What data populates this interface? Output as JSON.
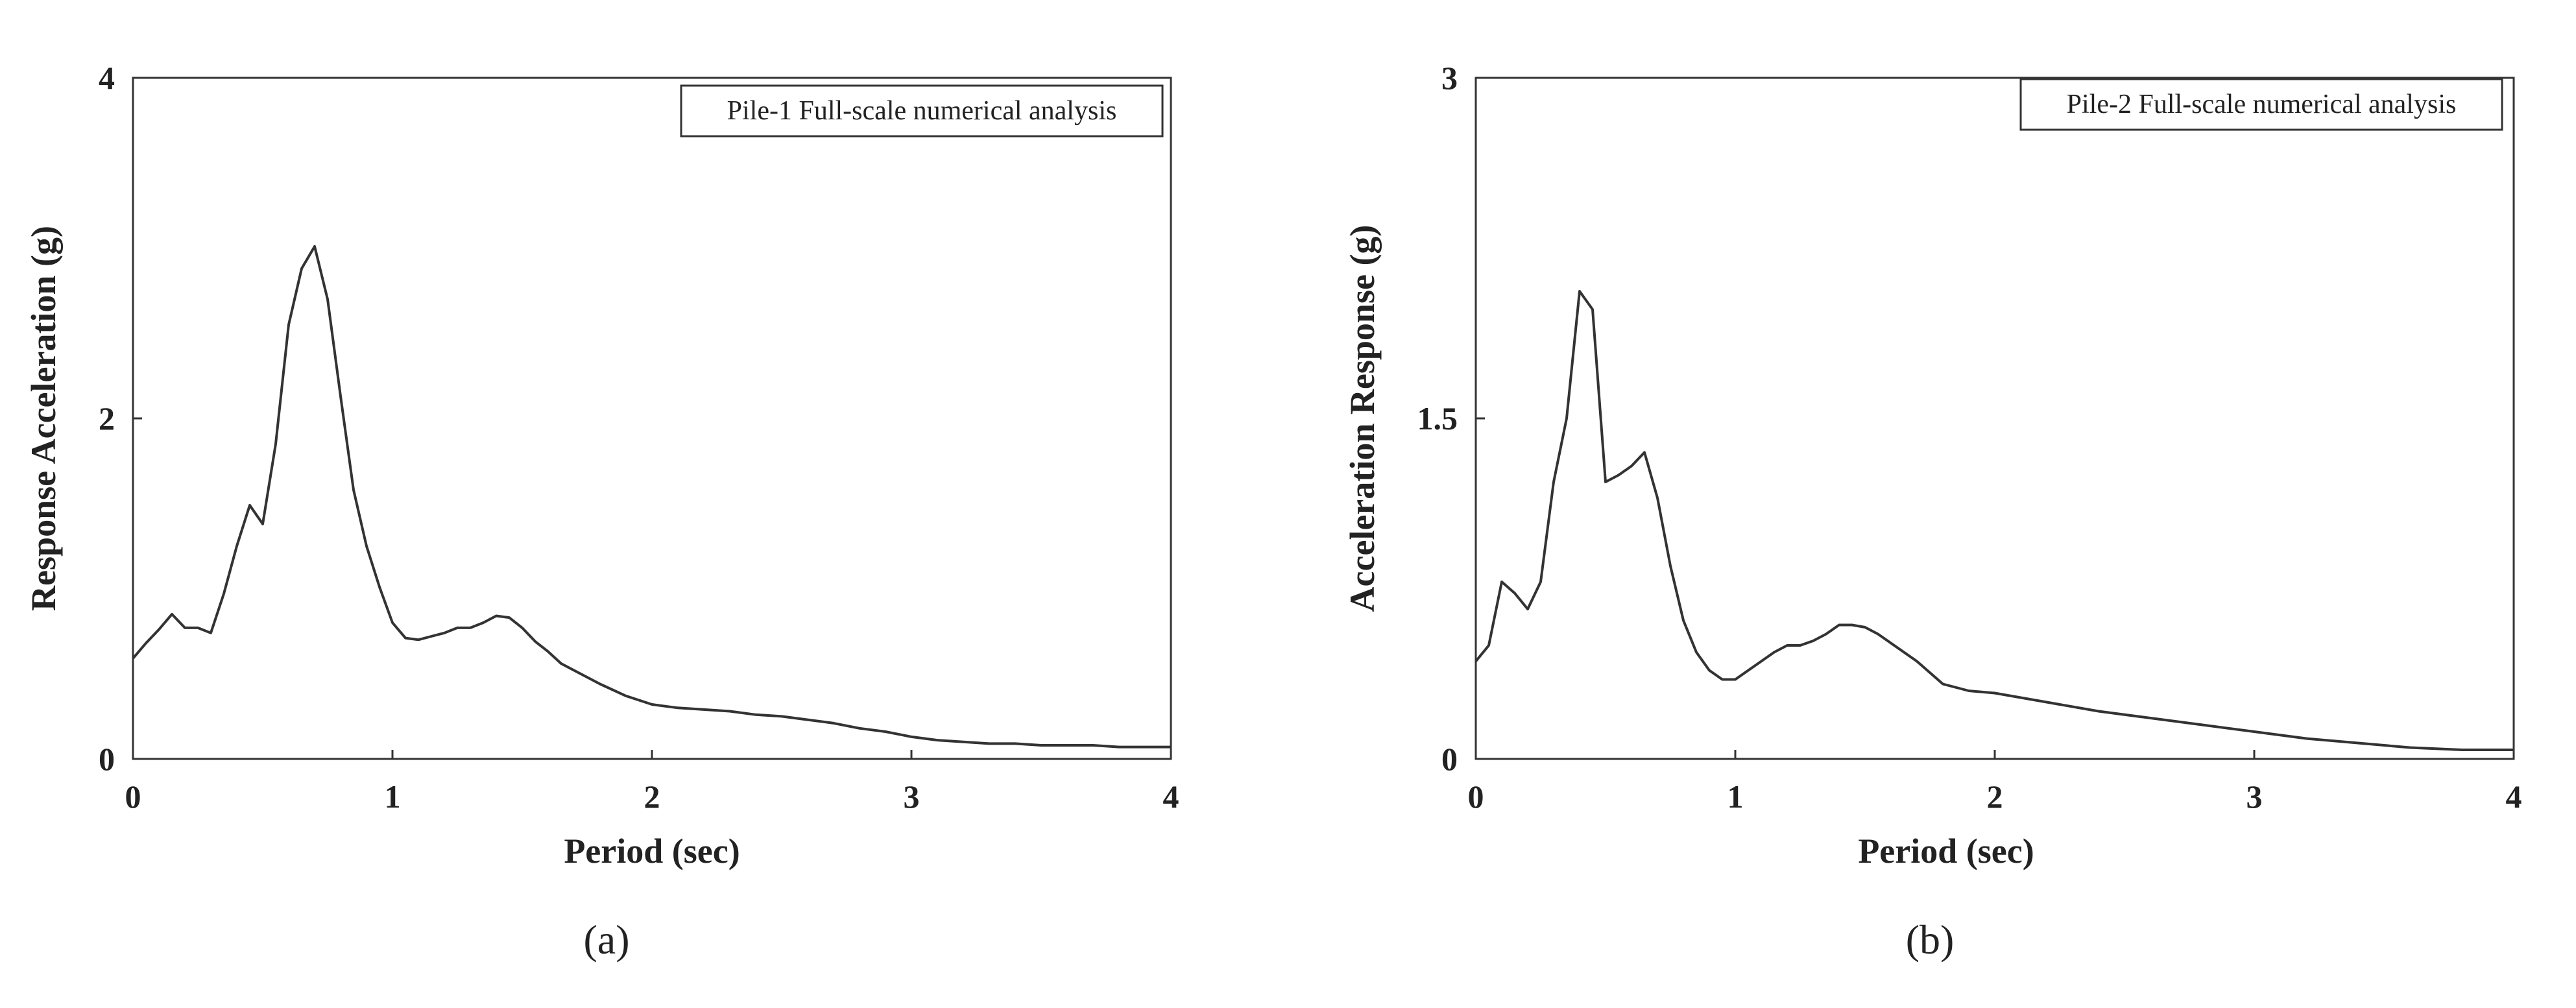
{
  "chart_data": [
    {
      "type": "line",
      "panel_label": "(a)",
      "legend": "Pile-1 Full-scale numerical analysis",
      "legend_position": "top-right",
      "xlabel": "Period (sec)",
      "ylabel": "Response Acceleration (g)",
      "xlim": [
        0,
        4
      ],
      "ylim": [
        0,
        4
      ],
      "xticks": [
        "0",
        "1",
        "2",
        "3",
        "4"
      ],
      "yticks": [
        "0",
        "2",
        "4"
      ],
      "grid": false,
      "line_color": "#333333",
      "series": [
        {
          "name": "Pile-1 Full-scale numerical analysis",
          "x": [
            0,
            0.05,
            0.1,
            0.15,
            0.2,
            0.25,
            0.3,
            0.35,
            0.4,
            0.45,
            0.5,
            0.55,
            0.6,
            0.65,
            0.7,
            0.75,
            0.8,
            0.85,
            0.9,
            0.95,
            1.0,
            1.05,
            1.1,
            1.15,
            1.2,
            1.25,
            1.3,
            1.35,
            1.4,
            1.45,
            1.5,
            1.55,
            1.6,
            1.65,
            1.7,
            1.8,
            1.9,
            2.0,
            2.1,
            2.2,
            2.3,
            2.4,
            2.5,
            2.6,
            2.7,
            2.8,
            2.9,
            3.0,
            3.1,
            3.2,
            3.3,
            3.4,
            3.5,
            3.6,
            3.7,
            3.8,
            3.9,
            4.0
          ],
          "y": [
            0.59,
            0.68,
            0.76,
            0.85,
            0.77,
            0.77,
            0.74,
            0.97,
            1.25,
            1.49,
            1.38,
            1.85,
            2.55,
            2.88,
            3.01,
            2.7,
            2.13,
            1.58,
            1.25,
            1.01,
            0.8,
            0.71,
            0.7,
            0.72,
            0.74,
            0.77,
            0.77,
            0.8,
            0.84,
            0.83,
            0.77,
            0.69,
            0.63,
            0.56,
            0.52,
            0.44,
            0.37,
            0.32,
            0.3,
            0.29,
            0.28,
            0.26,
            0.25,
            0.23,
            0.21,
            0.18,
            0.16,
            0.13,
            0.11,
            0.1,
            0.09,
            0.09,
            0.08,
            0.08,
            0.08,
            0.07,
            0.07,
            0.07
          ]
        }
      ]
    },
    {
      "type": "line",
      "panel_label": "(b)",
      "legend": "Pile-2 Full-scale numerical analysis",
      "legend_position": "top-right",
      "xlabel": "Period (sec)",
      "ylabel": "Acceleration Response (g)",
      "xlim": [
        0,
        4
      ],
      "ylim": [
        0,
        3
      ],
      "xticks": [
        "0",
        "1",
        "2",
        "3",
        "4"
      ],
      "yticks": [
        "0",
        "1.5",
        "3"
      ],
      "grid": false,
      "line_color": "#333333",
      "series": [
        {
          "name": "Pile-2 Full-scale numerical analysis",
          "x": [
            0,
            0.05,
            0.1,
            0.15,
            0.2,
            0.25,
            0.3,
            0.35,
            0.4,
            0.45,
            0.5,
            0.55,
            0.6,
            0.65,
            0.7,
            0.75,
            0.8,
            0.85,
            0.9,
            0.95,
            1.0,
            1.05,
            1.1,
            1.15,
            1.2,
            1.25,
            1.3,
            1.35,
            1.4,
            1.45,
            1.5,
            1.55,
            1.6,
            1.65,
            1.7,
            1.8,
            1.9,
            2.0,
            2.2,
            2.4,
            2.6,
            2.8,
            3.0,
            3.2,
            3.4,
            3.6,
            3.8,
            4.0
          ],
          "y": [
            0.43,
            0.5,
            0.78,
            0.73,
            0.66,
            0.78,
            1.22,
            1.5,
            2.06,
            1.98,
            1.22,
            1.25,
            1.29,
            1.35,
            1.15,
            0.85,
            0.61,
            0.47,
            0.39,
            0.35,
            0.35,
            0.39,
            0.43,
            0.47,
            0.5,
            0.5,
            0.52,
            0.55,
            0.59,
            0.59,
            0.58,
            0.55,
            0.51,
            0.47,
            0.43,
            0.33,
            0.3,
            0.29,
            0.25,
            0.21,
            0.18,
            0.15,
            0.12,
            0.09,
            0.07,
            0.05,
            0.04,
            0.04
          ]
        }
      ]
    }
  ]
}
